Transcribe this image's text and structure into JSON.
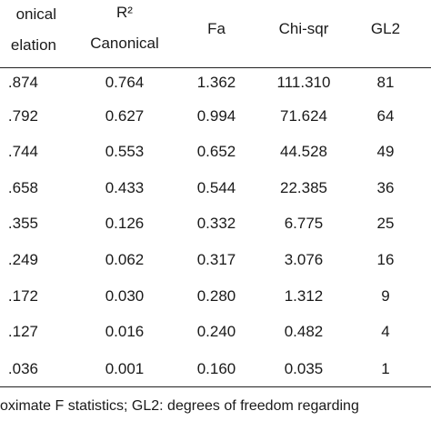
{
  "table": {
    "headers": {
      "canonical_correlation_line1": "onical",
      "canonical_correlation_line2": "elation",
      "r2_line1": "R²",
      "r2_line2": "Canonical",
      "fa": "Fa",
      "chi_sqr": "Chi-sqr",
      "gl2": "GL2"
    },
    "rows": [
      {
        "canonical_correlation": ".874",
        "r2_canonical": "0.764",
        "fa": "1.362",
        "chi_sqr": "111.310",
        "gl2": "81"
      },
      {
        "canonical_correlation": ".792",
        "r2_canonical": "0.627",
        "fa": "0.994",
        "chi_sqr": "71.624",
        "gl2": "64"
      },
      {
        "canonical_correlation": ".744",
        "r2_canonical": "0.553",
        "fa": "0.652",
        "chi_sqr": "44.528",
        "gl2": "49"
      },
      {
        "canonical_correlation": ".658",
        "r2_canonical": "0.433",
        "fa": "0.544",
        "chi_sqr": "22.385",
        "gl2": "36"
      },
      {
        "canonical_correlation": ".355",
        "r2_canonical": "0.126",
        "fa": "0.332",
        "chi_sqr": "6.775",
        "gl2": "25"
      },
      {
        "canonical_correlation": ".249",
        "r2_canonical": "0.062",
        "fa": "0.317",
        "chi_sqr": "3.076",
        "gl2": "16"
      },
      {
        "canonical_correlation": ".172",
        "r2_canonical": "0.030",
        "fa": "0.280",
        "chi_sqr": "1.312",
        "gl2": "9"
      },
      {
        "canonical_correlation": ".127",
        "r2_canonical": "0.016",
        "fa": "0.240",
        "chi_sqr": "0.482",
        "gl2": "4"
      },
      {
        "canonical_correlation": ".036",
        "r2_canonical": "0.001",
        "fa": "0.160",
        "chi_sqr": "0.035",
        "gl2": "1"
      }
    ]
  },
  "footnote": "oximate F statistics; GL2: degrees of freedom regarding"
}
